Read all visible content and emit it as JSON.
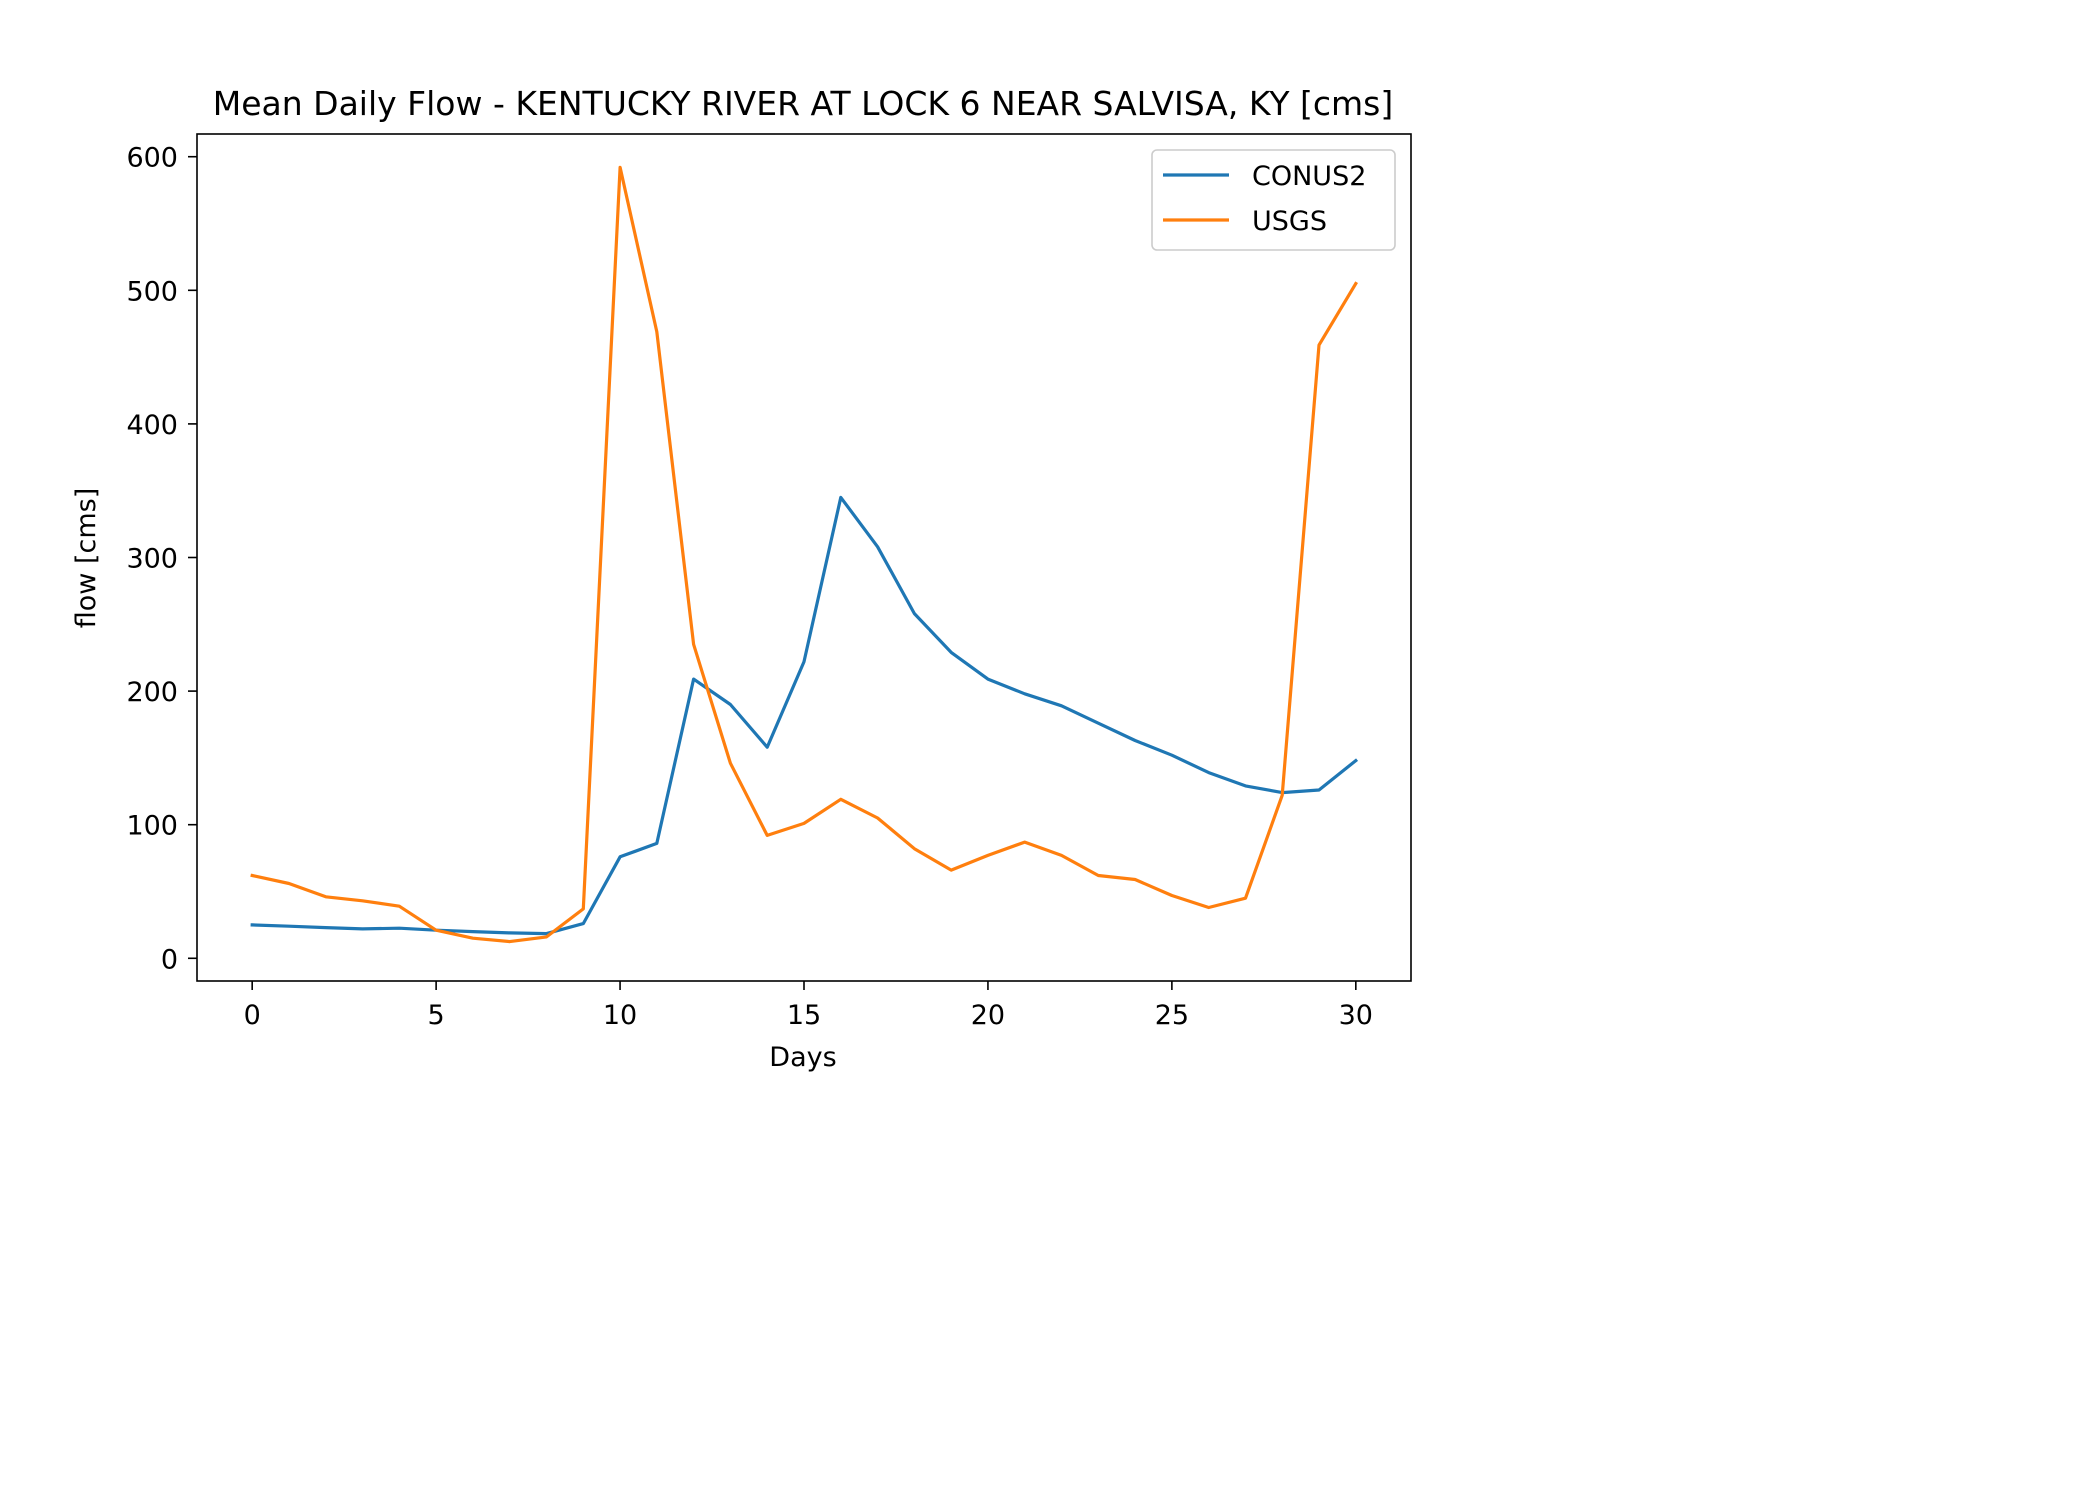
{
  "chart_data": {
    "type": "line",
    "title": "Mean Daily Flow - KENTUCKY RIVER AT LOCK 6 NEAR SALVISA, KY [cms]",
    "xlabel": "Days",
    "ylabel": "flow [cms]",
    "xlim": [
      -1.5,
      31.5
    ],
    "ylim": [
      -17,
      617
    ],
    "xticks": [
      0,
      5,
      10,
      15,
      20,
      25,
      30
    ],
    "yticks": [
      0,
      100,
      200,
      300,
      400,
      500,
      600
    ],
    "grid": false,
    "legend_position": "top-right",
    "x": [
      0,
      1,
      2,
      3,
      4,
      5,
      6,
      7,
      8,
      9,
      10,
      11,
      12,
      13,
      14,
      15,
      16,
      17,
      18,
      19,
      20,
      21,
      22,
      23,
      24,
      25,
      26,
      27,
      28,
      29,
      30
    ],
    "series": [
      {
        "name": "CONUS2",
        "color": "#1f77b4",
        "values": [
          25,
          24,
          23,
          22,
          22.5,
          21,
          20,
          19,
          18.5,
          26,
          76,
          86,
          209,
          190,
          158,
          222,
          345,
          308,
          258,
          229,
          209,
          198,
          189,
          176,
          163,
          152,
          139,
          129,
          124,
          126,
          148
        ]
      },
      {
        "name": "USGS",
        "color": "#ff7f0e",
        "values": [
          62,
          56,
          46,
          43,
          39,
          21,
          15,
          12.5,
          16,
          37,
          592,
          469,
          235,
          146,
          92,
          101,
          119,
          105,
          82,
          66,
          77,
          87,
          77,
          62,
          59,
          47,
          38,
          45,
          122,
          459,
          505
        ]
      }
    ]
  }
}
